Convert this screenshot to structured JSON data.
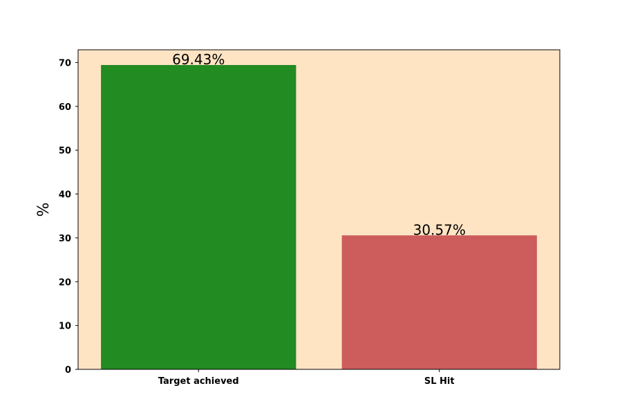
{
  "chart_data": {
    "type": "bar",
    "categories": [
      "Target achieved",
      "SL Hit"
    ],
    "values": [
      69.43,
      30.57
    ],
    "data_labels": [
      "69.43%",
      "30.57%"
    ],
    "bar_colors": [
      "#228b22",
      "#cd5c5c"
    ],
    "plot_background": "#ffe4c4",
    "title": "",
    "xlabel": "",
    "ylabel": "%",
    "ylim": [
      0,
      72.9
    ],
    "yticks": [
      0,
      10,
      20,
      30,
      40,
      50,
      60,
      70
    ],
    "grid": false
  }
}
